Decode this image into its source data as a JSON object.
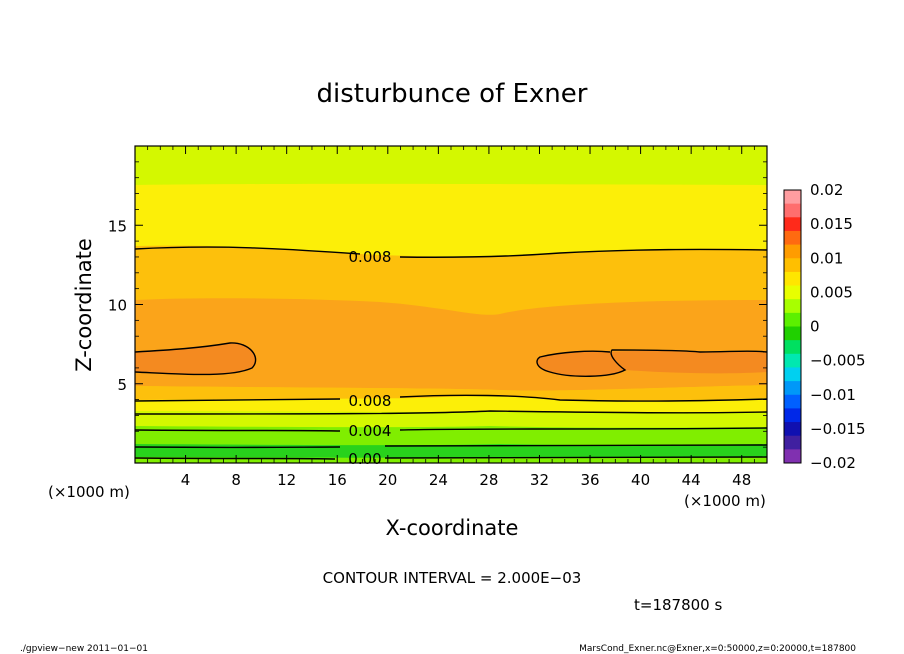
{
  "chart_data": {
    "type": "contour",
    "title": "disturbunce of Exner",
    "xlabel": "X-coordinate",
    "ylabel": "Z-coordinate",
    "x_unit": "(×1000 m)",
    "y_unit": "(×1000 m)",
    "xlim": [
      0,
      50
    ],
    "ylim": [
      0,
      20
    ],
    "x_ticks": [
      4,
      8,
      12,
      16,
      20,
      24,
      28,
      32,
      36,
      40,
      44,
      48
    ],
    "x_tick_labels": [
      "4",
      "8",
      "12",
      "16",
      "20",
      "24",
      "28",
      "32",
      "36",
      "40",
      "44",
      "48"
    ],
    "y_ticks": [
      5,
      10,
      15
    ],
    "y_tick_labels": [
      "5",
      "10",
      "15"
    ],
    "contour_interval_text": "CONTOUR INTERVAL = 2.000E−03",
    "time_text": "t=187800 s",
    "contour_labels": [
      "0.008",
      "0.008",
      "0.004",
      "0.00"
    ],
    "colorbar": {
      "ticks": [
        0.02,
        0.015,
        0.01,
        0.005,
        0,
        -0.005,
        -0.01,
        -0.015,
        -0.02
      ],
      "labels": [
        "0.02",
        "0.015",
        "0.01",
        "0.005",
        "0",
        "−0.005",
        "−0.01",
        "−0.015",
        "−0.02"
      ],
      "colors": [
        "#ff9da0",
        "#ff6e6e",
        "#ff2a1a",
        "#ff6a10",
        "#ff9c00",
        "#ffbf00",
        "#ffe600",
        "#e8ff00",
        "#a8ff00",
        "#5cf000",
        "#20d000",
        "#00e060",
        "#00e8b0",
        "#00d0f0",
        "#0098f8",
        "#0060ff",
        "#0028e8",
        "#1010b0",
        "#4020a0",
        "#8030b0"
      ]
    },
    "bands": [
      {
        "label": "0.010-0.012",
        "color": "#fba41a"
      },
      {
        "label": "0.008-0.010",
        "color": "#fdc00c"
      },
      {
        "label": "0.006-0.008",
        "color": "#fcef08"
      },
      {
        "label": "0.004-0.006",
        "color": "#d4f800"
      },
      {
        "label": "0.002-0.004",
        "color": "#80ee00"
      },
      {
        "label": "0.000-0.002",
        "color": "#28d21c"
      }
    ]
  },
  "footer": {
    "left": "./gpview−new   2011−01−01",
    "right": "MarsCond_Exner.nc@Exner,x=0:50000,z=0:20000,t=187800"
  }
}
